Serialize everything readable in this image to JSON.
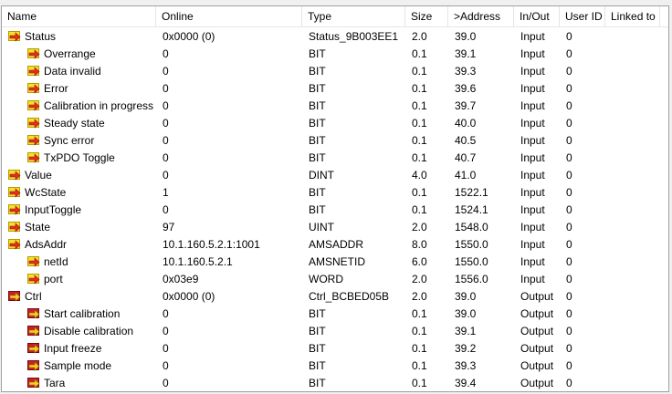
{
  "columns": [
    "Name",
    "Online",
    "Type",
    "Size",
    ">Address",
    "In/Out",
    "User ID",
    "Linked to"
  ],
  "rows": [
    {
      "name": "Status",
      "online": "0x0000 (0)",
      "type": "Status_9B003EE1",
      "size": "2.0",
      "address": "39.0",
      "inout": "Input",
      "userid": "0",
      "level": 0,
      "icon": "input-var-icon"
    },
    {
      "name": "Overrange",
      "online": "0",
      "type": "BIT",
      "size": "0.1",
      "address": "39.1",
      "inout": "Input",
      "userid": "0",
      "level": 1,
      "icon": "input-var-icon"
    },
    {
      "name": "Data invalid",
      "online": "0",
      "type": "BIT",
      "size": "0.1",
      "address": "39.3",
      "inout": "Input",
      "userid": "0",
      "level": 1,
      "icon": "input-var-icon"
    },
    {
      "name": "Error",
      "online": "0",
      "type": "BIT",
      "size": "0.1",
      "address": "39.6",
      "inout": "Input",
      "userid": "0",
      "level": 1,
      "icon": "input-var-icon"
    },
    {
      "name": "Calibration in progress",
      "online": "0",
      "type": "BIT",
      "size": "0.1",
      "address": "39.7",
      "inout": "Input",
      "userid": "0",
      "level": 1,
      "icon": "input-var-icon"
    },
    {
      "name": "Steady state",
      "online": "0",
      "type": "BIT",
      "size": "0.1",
      "address": "40.0",
      "inout": "Input",
      "userid": "0",
      "level": 1,
      "icon": "input-var-icon"
    },
    {
      "name": "Sync error",
      "online": "0",
      "type": "BIT",
      "size": "0.1",
      "address": "40.5",
      "inout": "Input",
      "userid": "0",
      "level": 1,
      "icon": "input-var-icon"
    },
    {
      "name": "TxPDO Toggle",
      "online": "0",
      "type": "BIT",
      "size": "0.1",
      "address": "40.7",
      "inout": "Input",
      "userid": "0",
      "level": 1,
      "icon": "input-var-icon"
    },
    {
      "name": "Value",
      "online": "0",
      "type": "DINT",
      "size": "4.0",
      "address": "41.0",
      "inout": "Input",
      "userid": "0",
      "level": 0,
      "icon": "input-var-icon"
    },
    {
      "name": "WcState",
      "online": "1",
      "type": "BIT",
      "size": "0.1",
      "address": "1522.1",
      "inout": "Input",
      "userid": "0",
      "level": 0,
      "icon": "input-var-icon"
    },
    {
      "name": "InputToggle",
      "online": "0",
      "type": "BIT",
      "size": "0.1",
      "address": "1524.1",
      "inout": "Input",
      "userid": "0",
      "level": 0,
      "icon": "input-var-icon"
    },
    {
      "name": "State",
      "online": "97",
      "type": "UINT",
      "size": "2.0",
      "address": "1548.0",
      "inout": "Input",
      "userid": "0",
      "level": 0,
      "icon": "input-var-icon"
    },
    {
      "name": "AdsAddr",
      "online": "10.1.160.5.2.1:1001",
      "type": "AMSADDR",
      "size": "8.0",
      "address": "1550.0",
      "inout": "Input",
      "userid": "0",
      "level": 0,
      "icon": "input-var-icon"
    },
    {
      "name": "netId",
      "online": "10.1.160.5.2.1",
      "type": "AMSNETID",
      "size": "6.0",
      "address": "1550.0",
      "inout": "Input",
      "userid": "0",
      "level": 1,
      "icon": "input-var-icon"
    },
    {
      "name": "port",
      "online": "0x03e9",
      "type": "WORD",
      "size": "2.0",
      "address": "1556.0",
      "inout": "Input",
      "userid": "0",
      "level": 1,
      "icon": "input-var-icon"
    },
    {
      "name": "Ctrl",
      "online": "0x0000 (0)",
      "type": "Ctrl_BCBED05B",
      "size": "2.0",
      "address": "39.0",
      "inout": "Output",
      "userid": "0",
      "level": 0,
      "icon": "output-var-icon"
    },
    {
      "name": "Start calibration",
      "online": "0",
      "type": "BIT",
      "size": "0.1",
      "address": "39.0",
      "inout": "Output",
      "userid": "0",
      "level": 1,
      "icon": "output-var-icon"
    },
    {
      "name": "Disable calibration",
      "online": "0",
      "type": "BIT",
      "size": "0.1",
      "address": "39.1",
      "inout": "Output",
      "userid": "0",
      "level": 1,
      "icon": "output-var-icon"
    },
    {
      "name": "Input freeze",
      "online": "0",
      "type": "BIT",
      "size": "0.1",
      "address": "39.2",
      "inout": "Output",
      "userid": "0",
      "level": 1,
      "icon": "output-var-icon"
    },
    {
      "name": "Sample mode",
      "online": "0",
      "type": "BIT",
      "size": "0.1",
      "address": "39.3",
      "inout": "Output",
      "userid": "0",
      "level": 1,
      "icon": "output-var-icon"
    },
    {
      "name": "Tara",
      "online": "0",
      "type": "BIT",
      "size": "0.1",
      "address": "39.4",
      "inout": "Output",
      "userid": "0",
      "level": 1,
      "icon": "output-var-icon"
    }
  ]
}
